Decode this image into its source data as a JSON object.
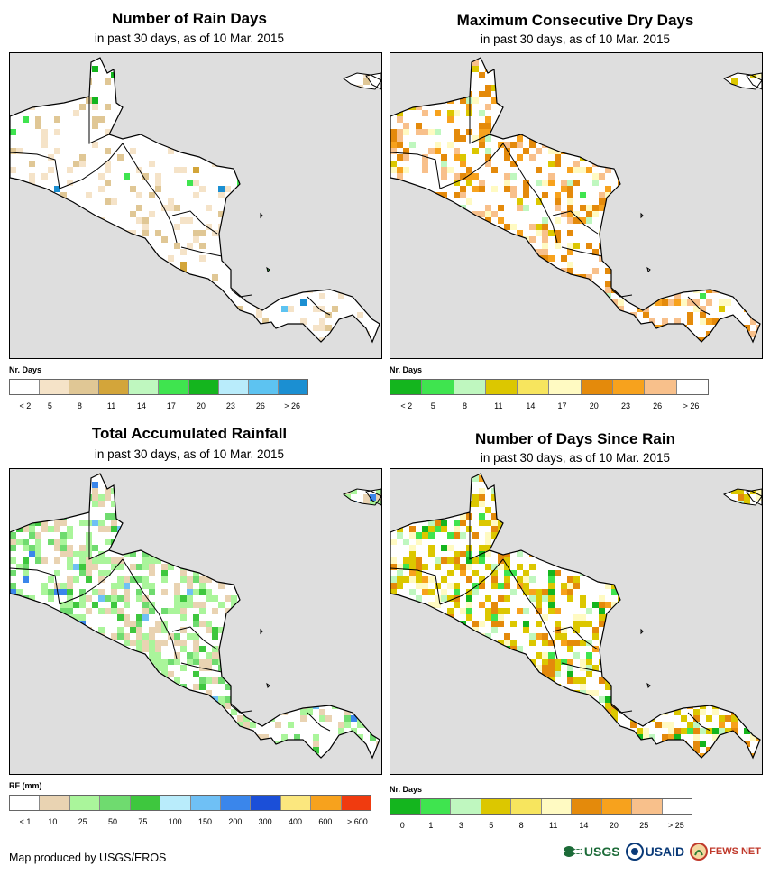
{
  "footer": {
    "credit": "Map produced by USGS/EROS"
  },
  "logos": [
    {
      "name": "usgs",
      "text": "USGS",
      "color": "#1c6b38"
    },
    {
      "name": "usaid",
      "text": "USAID",
      "color": "#0a3a78"
    },
    {
      "name": "fewsnet",
      "text": "FEWS NET",
      "color": "#c0392b"
    }
  ],
  "panels": [
    {
      "id": "rain-days",
      "title": "Number of Rain Days",
      "subtitle": "in past 30 days, as of 10 Mar. 2015",
      "legend_title": "Nr. Days",
      "legend_colors": [
        "#ffffff",
        "#f5e3c8",
        "#e0c795",
        "#d3a53a",
        "#bff7bf",
        "#3fe44f",
        "#14b51e",
        "#b9ecfb",
        "#5dc3f1",
        "#1b8fd2"
      ],
      "legend_labels": [
        "< 2",
        "5",
        "8",
        "11",
        "14",
        "17",
        "20",
        "23",
        "26",
        "> 26"
      ]
    },
    {
      "id": "max-dry-days",
      "title": "Maximum Consecutive Dry Days",
      "subtitle": "in past 30 days, as of 10 Mar. 2015",
      "legend_title": "Nr. Days",
      "legend_colors": [
        "#14b51e",
        "#3fe44f",
        "#bff7bf",
        "#dcc700",
        "#f7e55e",
        "#fffac2",
        "#e48a0b",
        "#f7a21d",
        "#f8c08b",
        "#ffffff"
      ],
      "legend_labels": [
        "< 2",
        "5",
        "8",
        "11",
        "14",
        "17",
        "20",
        "23",
        "26",
        "> 26"
      ]
    },
    {
      "id": "total-rainfall",
      "title": "Total Accumulated Rainfall",
      "subtitle": "in past 30 days, as of 10 Mar. 2015",
      "legend_title": "RF (mm)",
      "legend_colors": [
        "#ffffff",
        "#e9d3b2",
        "#aaf59b",
        "#6fdb6f",
        "#3ec73e",
        "#b9ecfb",
        "#6fc0f5",
        "#3a86eb",
        "#1b4fd8",
        "#fbe77e",
        "#f7a21d",
        "#f03b0f"
      ],
      "legend_labels": [
        "< 1",
        "10",
        "25",
        "50",
        "75",
        "100",
        "150",
        "200",
        "300",
        "400",
        "600",
        "> 600"
      ]
    },
    {
      "id": "days-since-rain",
      "title": "Number of Days Since Rain",
      "subtitle": "in past 30 days, as of 10 Mar. 2015",
      "legend_title": "Nr. Days",
      "legend_colors": [
        "#14b51e",
        "#3fe44f",
        "#bff7bf",
        "#dcc700",
        "#f7e55e",
        "#fffac2",
        "#e48a0b",
        "#f7a21d",
        "#f8c08b",
        "#ffffff"
      ],
      "legend_labels": [
        "0",
        "1",
        "3",
        "5",
        "8",
        "11",
        "14",
        "20",
        "25",
        "> 25"
      ]
    }
  ]
}
